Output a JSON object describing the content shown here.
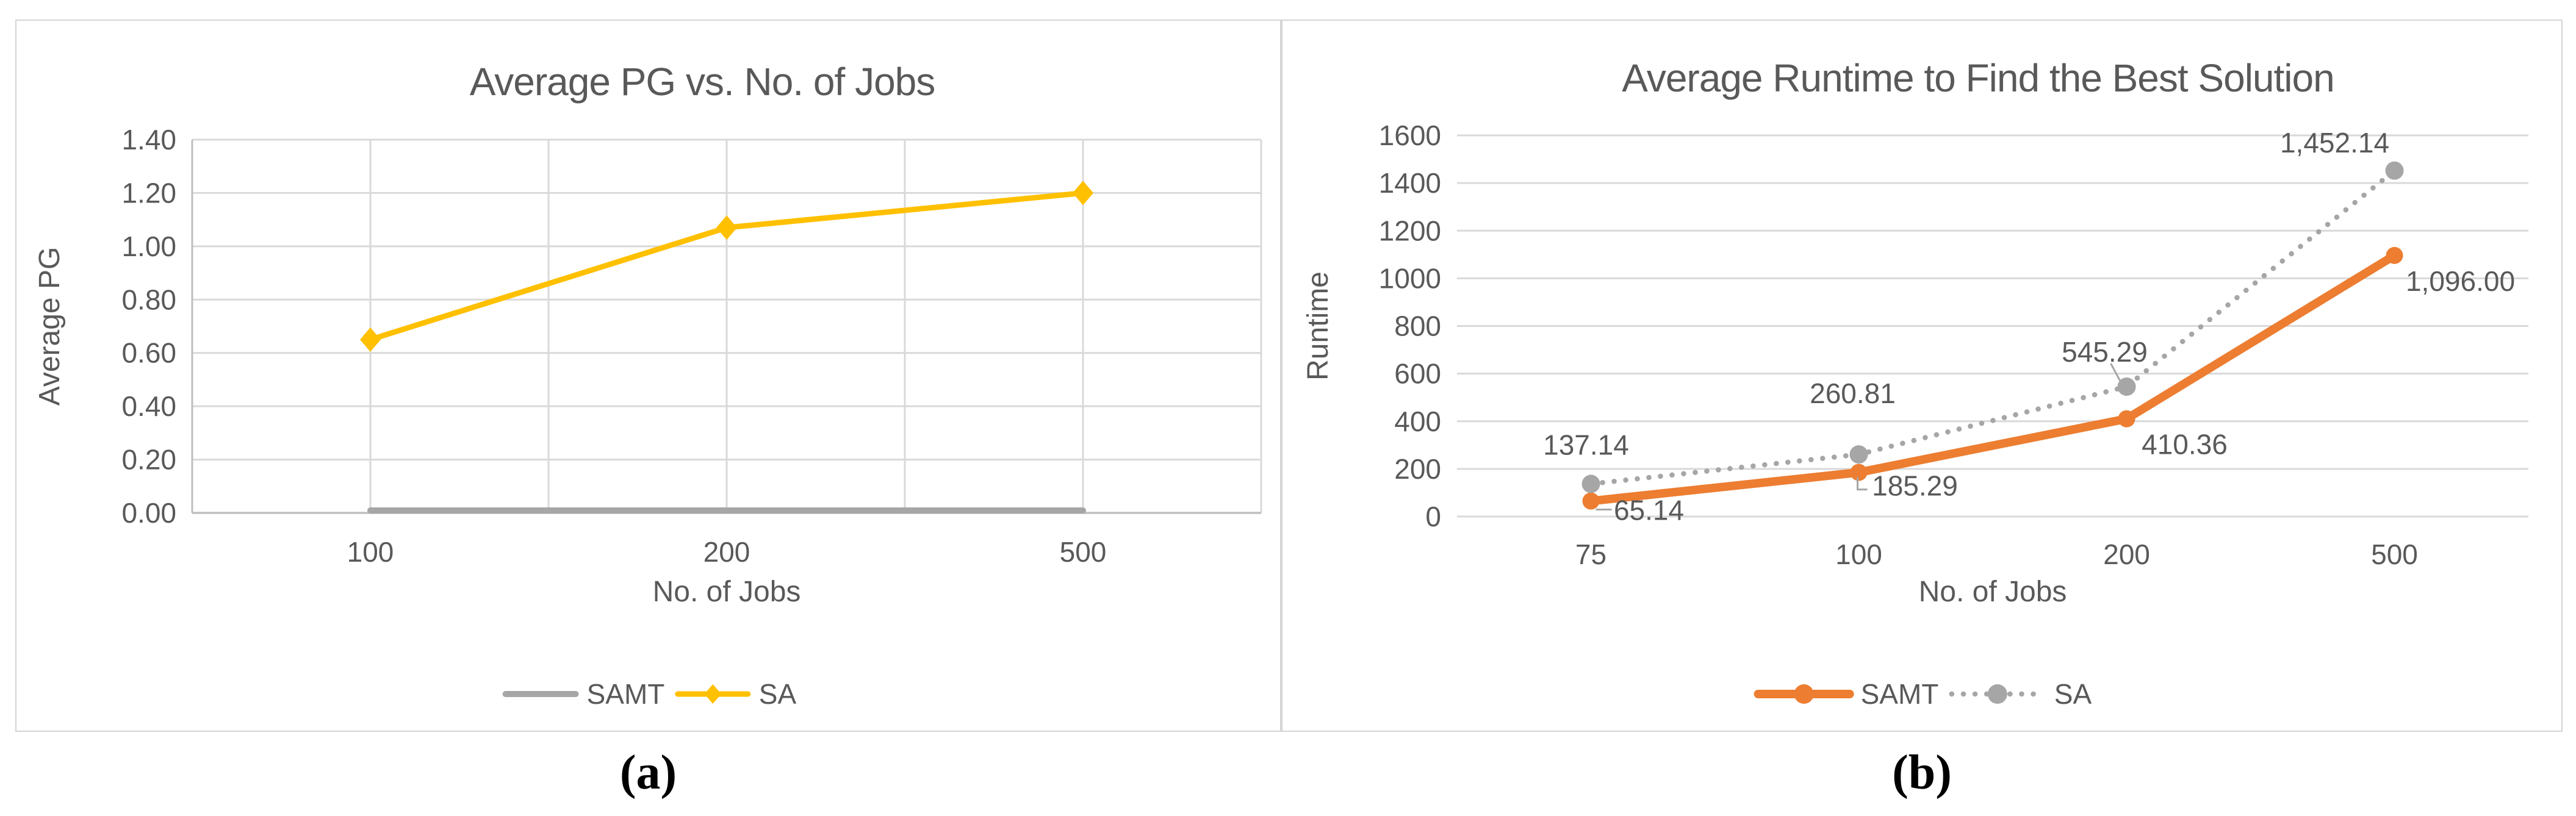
{
  "figure": {
    "panels": [
      {
        "caption": "(a)"
      },
      {
        "caption": "(b)"
      }
    ]
  },
  "colors": {
    "text": "#595959",
    "grid": "#d9d9d9",
    "axis": "#bfbfbf",
    "leader": "#a6a6a6",
    "panel_border": "#d4d4d4",
    "background": "#ffffff",
    "caption": "#000000",
    "samt_runtime": "#ed7d31",
    "sa_pg": "#ffc000",
    "gray_series": "#a6a6a6"
  },
  "chart_data": [
    {
      "type": "line",
      "title": "Average PG vs. No. of Jobs",
      "xlabel": "No. of Jobs",
      "ylabel": "Average PG",
      "categories": [
        "100",
        "200",
        "500"
      ],
      "ylim": [
        0,
        1.4
      ],
      "y_ticks": [
        "0.00",
        "0.20",
        "0.40",
        "0.60",
        "0.80",
        "1.00",
        "1.20",
        "1.40"
      ],
      "grid": {
        "horizontal": true,
        "vertical": true
      },
      "legend_position": "bottom",
      "series": [
        {
          "name": "SAMT",
          "color": "#a6a6a6",
          "line": "solid",
          "marker": "none",
          "values": [
            0.0,
            0.0,
            0.0
          ],
          "data_labels": null
        },
        {
          "name": "SA",
          "color": "#ffc000",
          "line": "solid",
          "marker": "diamond",
          "values": [
            0.65,
            1.07,
            1.2
          ],
          "data_labels": null
        }
      ]
    },
    {
      "type": "line",
      "title": "Average Runtime to Find the Best Solution",
      "xlabel": "No. of Jobs",
      "ylabel": "Runtime",
      "categories": [
        "75",
        "100",
        "200",
        "500"
      ],
      "ylim": [
        0,
        1600
      ],
      "y_ticks": [
        "0",
        "200",
        "400",
        "600",
        "800",
        "1000",
        "1200",
        "1400",
        "1600"
      ],
      "grid": {
        "horizontal": true,
        "vertical": false
      },
      "legend_position": "bottom",
      "series": [
        {
          "name": "SAMT",
          "color": "#ed7d31",
          "line": "solid",
          "marker": "circle",
          "values": [
            65.14,
            185.29,
            410.36,
            1096.0
          ],
          "data_labels": [
            "65.14",
            "185.29",
            "410.36",
            "1,096.00"
          ]
        },
        {
          "name": "SA",
          "color": "#a6a6a6",
          "line": "dotted",
          "marker": "circle",
          "values": [
            137.14,
            260.81,
            545.29,
            1452.14
          ],
          "data_labels": [
            "137.14",
            "260.81",
            "545.29",
            "1,452.14"
          ]
        }
      ]
    }
  ]
}
